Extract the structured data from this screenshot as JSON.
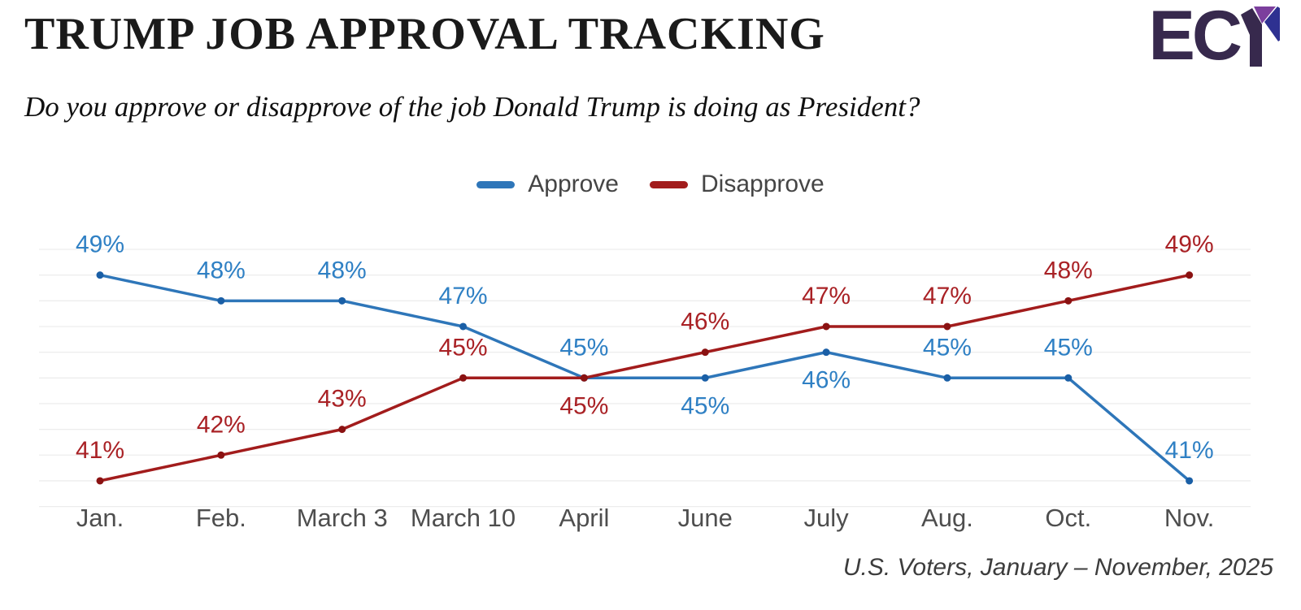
{
  "header": {
    "title": "TRUMP JOB APPROVAL TRACKING",
    "logo": {
      "text": "EC",
      "colors": {
        "dark": "#37294d",
        "purple": "#7c3f9d",
        "navy": "#2e3191"
      }
    }
  },
  "subtitle": "Do you approve or disapprove of the job Donald Trump is doing as President?",
  "legend": [
    {
      "label": "Approve",
      "color": "#2e76b9"
    },
    {
      "label": "Disapprove",
      "color": "#a21c1c"
    }
  ],
  "chart_data": {
    "type": "line",
    "title": "TRUMP JOB APPROVAL TRACKING",
    "xlabel": "",
    "ylabel": "",
    "categories": [
      "Jan.",
      "Feb.",
      "March 3",
      "March 10",
      "April",
      "June",
      "July",
      "Aug.",
      "Oct.",
      "Nov."
    ],
    "series": [
      {
        "name": "Approve",
        "values": [
          49,
          48,
          48,
          47,
          45,
          45,
          46,
          45,
          45,
          41
        ],
        "color": "#2e76b9",
        "marker_color": "#1a5fa6",
        "label_color": "#2f80c4",
        "label_side": [
          "above",
          "above",
          "above",
          "above",
          "above",
          "below",
          "below",
          "above",
          "above",
          "above"
        ]
      },
      {
        "name": "Disapprove",
        "values": [
          41,
          42,
          43,
          45,
          45,
          46,
          47,
          47,
          48,
          49
        ],
        "color": "#a21c1c",
        "marker_color": "#8a1212",
        "label_color": "#a92125",
        "label_side": [
          "above",
          "above",
          "above",
          "above",
          "below",
          "above",
          "above",
          "above",
          "above",
          "above"
        ]
      }
    ],
    "value_suffix": "%",
    "ylim": [
      40,
      50
    ],
    "grid": true,
    "grid_color": "#ededed",
    "axis_label_color": "#4e4e4e",
    "legend_position": "top-center"
  },
  "footer": "U.S. Voters, January – November, 2025"
}
